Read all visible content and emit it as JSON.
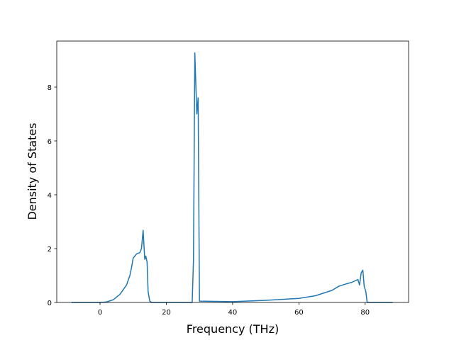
{
  "chart_data": {
    "type": "line",
    "x_label": "Frequency (THz)",
    "y_label": "Density of States",
    "x": [
      -8.6,
      0,
      2,
      4,
      6,
      8,
      9,
      9.5,
      10,
      11,
      12,
      12.5,
      13,
      13.5,
      13.8,
      14.2,
      14.5,
      15,
      15.5,
      27.8,
      28.2,
      28.6,
      29.2,
      29.6,
      30,
      40,
      50,
      60,
      65,
      70,
      72,
      74,
      76,
      77.8,
      78.3,
      78.8,
      79.3,
      79.7,
      80.2,
      80.6,
      88.3
    ],
    "values": [
      0,
      0,
      0.02,
      0.1,
      0.3,
      0.65,
      1.0,
      1.3,
      1.65,
      1.8,
      1.85,
      2.0,
      2.68,
      1.6,
      1.72,
      1.5,
      0.4,
      0.05,
      0,
      0,
      1.6,
      9.27,
      7.0,
      7.6,
      0.05,
      0.03,
      0.08,
      0.15,
      0.25,
      0.45,
      0.6,
      0.68,
      0.75,
      0.85,
      0.65,
      1.1,
      1.2,
      0.6,
      0.4,
      0,
      0
    ],
    "color": "#1f77b4",
    "xlim": [
      -13.06,
      93.1
    ],
    "xticks": [
      0,
      20,
      40,
      60,
      80
    ],
    "ylim": [
      0,
      9.71
    ],
    "yticks": [
      0,
      2,
      4,
      6,
      8
    ]
  }
}
